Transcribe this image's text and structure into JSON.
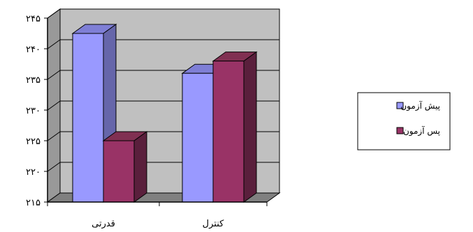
{
  "chart_data": {
    "type": "bar",
    "style": "3d-clustered-column",
    "categories": [
      "قدرتی",
      "کنترل"
    ],
    "series": [
      {
        "name": "پیش آزمون",
        "values": [
          242.5,
          236.0
        ]
      },
      {
        "name": "پس آزمون",
        "values": [
          225.0,
          238.0
        ]
      }
    ],
    "yticks": [
      "۲۱۵",
      "۲۲۰",
      "۲۲۵",
      "۲۳۰",
      "۲۳۵",
      "۲۴۰",
      "۲۴۵"
    ],
    "ylim": [
      215,
      245
    ],
    "grid": true,
    "legend_position": "right",
    "colors": {
      "series1_front": "#9999ff",
      "series1_top": "#7f7fd6",
      "series1_side": "#6666aa",
      "series2_front": "#993366",
      "series2_top": "#803052",
      "series2_side": "#5a1f3c",
      "wall": "#c0c0c0",
      "wall_side": "#999999",
      "floor": "#808080"
    }
  }
}
